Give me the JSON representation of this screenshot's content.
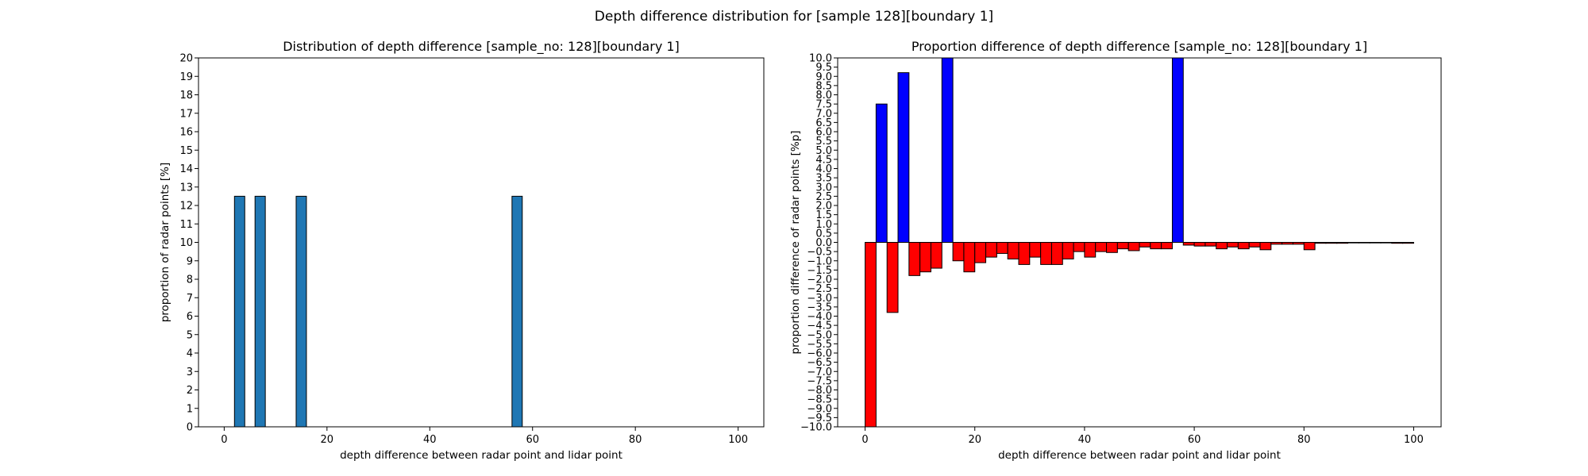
{
  "figure_title": "Depth difference distribution for [sample 128][boundary 1]",
  "chart_data": [
    {
      "type": "bar",
      "title": "Distribution of depth difference [sample_no: 128][boundary 1]",
      "xlabel": "depth difference between radar point and lidar point",
      "ylabel": "proportion of radar points [%]",
      "xlim": [
        -5,
        105
      ],
      "ylim": [
        0,
        20
      ],
      "xticks": [
        0,
        20,
        40,
        60,
        80,
        100
      ],
      "yticks": [
        0,
        1,
        2,
        3,
        4,
        5,
        6,
        7,
        8,
        9,
        10,
        11,
        12,
        13,
        14,
        15,
        16,
        17,
        18,
        19,
        20
      ],
      "bar_width": 2,
      "bar_color": "#1f77b4",
      "x": [
        3,
        7,
        15,
        57
      ],
      "values": [
        12.5,
        12.5,
        12.5,
        12.5
      ]
    },
    {
      "type": "bar",
      "title": "Proportion difference of depth difference [sample_no: 128][boundary 1]",
      "xlabel": "depth difference between radar point and lidar point",
      "ylabel": "proportion difference of radar points [%p]",
      "xlim": [
        -5,
        105
      ],
      "ylim": [
        -10,
        10
      ],
      "xticks": [
        0,
        20,
        40,
        60,
        80,
        100
      ],
      "ytick_step": 0.5,
      "bar_width": 2,
      "positive_color": "#0000ff",
      "negative_color": "#ff0000",
      "x": [
        1,
        3,
        5,
        7,
        9,
        11,
        13,
        15,
        17,
        19,
        21,
        23,
        25,
        27,
        29,
        31,
        33,
        35,
        37,
        39,
        41,
        43,
        45,
        47,
        49,
        51,
        53,
        55,
        57,
        59,
        61,
        63,
        65,
        67,
        69,
        71,
        73,
        75,
        77,
        79,
        81,
        83,
        85,
        87,
        89,
        91,
        93,
        95,
        97,
        99
      ],
      "values": [
        -10.0,
        7.5,
        -3.8,
        9.2,
        -1.8,
        -1.6,
        -1.4,
        10.0,
        -1.0,
        -1.6,
        -1.1,
        -0.8,
        -0.6,
        -0.9,
        -1.2,
        -0.8,
        -1.2,
        -1.2,
        -0.9,
        -0.5,
        -0.8,
        -0.5,
        -0.55,
        -0.35,
        -0.45,
        -0.25,
        -0.35,
        -0.35,
        10.0,
        -0.15,
        -0.2,
        -0.2,
        -0.35,
        -0.25,
        -0.35,
        -0.25,
        -0.4,
        -0.1,
        -0.1,
        -0.1,
        -0.4,
        -0.05,
        -0.05,
        -0.05,
        -0.03,
        -0.03,
        -0.03,
        -0.03,
        -0.05,
        -0.05
      ]
    }
  ]
}
